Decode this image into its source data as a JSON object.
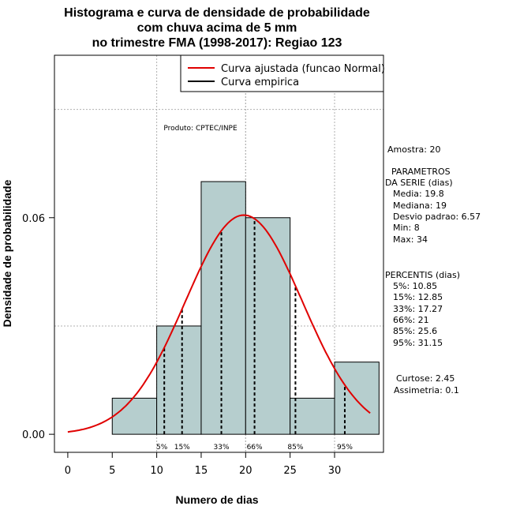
{
  "chart_data": {
    "type": "bar",
    "title_lines": [
      "Histograma e curva de densidade de probabilidade",
      "com chuva acima de 5 mm",
      "no trimestre FMA (1998-2017): Regiao 123"
    ],
    "xlabel": "Numero de dias",
    "ylabel": "Densidade de probabilidade",
    "xlim": [
      -1.5,
      35.5
    ],
    "ylim": [
      -0.005,
      0.105
    ],
    "x_ticks": [
      0,
      5,
      10,
      15,
      20,
      25,
      30
    ],
    "y_ticks": [
      0.0,
      0.06
    ],
    "y_tick_labels": [
      "0.00",
      "0.06"
    ],
    "grid": true,
    "bins": [
      {
        "from": 5,
        "to": 10,
        "density": 0.01
      },
      {
        "from": 10,
        "to": 15,
        "density": 0.03
      },
      {
        "from": 15,
        "to": 20,
        "density": 0.07
      },
      {
        "from": 20,
        "to": 25,
        "density": 0.06
      },
      {
        "from": 25,
        "to": 30,
        "density": 0.01
      },
      {
        "from": 30,
        "to": 35,
        "density": 0.02
      }
    ],
    "bar_color": "#b6cece",
    "fitted_curve": {
      "name": "Curva ajustada (funcao Normal)",
      "mean": 19.8,
      "sd": 6.57,
      "from": 0,
      "to": 34,
      "color": "#e00000"
    },
    "empirical_curve": {
      "name": "Curva empirica",
      "color": "#000000"
    },
    "legend": {
      "placement": "top-right",
      "entries": [
        "Curva ajustada (funcao Normal)",
        "Curva empirica"
      ]
    },
    "percentile_marks": [
      {
        "label": "5%",
        "x": 10.85
      },
      {
        "label": "15%",
        "x": 12.85
      },
      {
        "label": "33%",
        "x": 17.27
      },
      {
        "label": "66%",
        "x": 21
      },
      {
        "label": "85%",
        "x": 25.6
      },
      {
        "label": "95%",
        "x": 31.15
      }
    ],
    "annotation": "Produto: CPTEC/INPE"
  },
  "stats": {
    "amostra": "Amostra: 20",
    "params_title_1": "PARAMETROS",
    "params_title_2": "DA SERIE (dias)",
    "media": "Media: 19.8",
    "mediana": "Mediana: 19",
    "desvio": "Desvio padrao: 6.57",
    "min": "Min: 8",
    "max": "Max: 34",
    "percentis_title": "PERCENTIS (dias)",
    "p5": "5%: 10.85",
    "p15": "15%: 12.85",
    "p33": "33%: 17.27",
    "p66": "66%: 21",
    "p85": "85%: 25.6",
    "p95": "95%: 31.15",
    "curtose": "Curtose: 2.45",
    "assimetria": "Assimetria: 0.1"
  }
}
